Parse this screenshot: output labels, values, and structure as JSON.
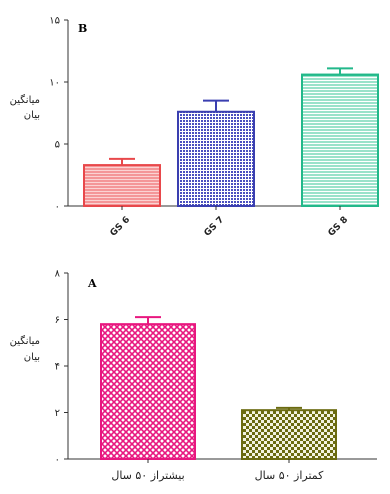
{
  "chart_data": [
    {
      "panel": "B",
      "type": "bar",
      "categories": [
        "GS 6",
        "GS 7",
        "GS 8"
      ],
      "values": [
        3.3,
        7.6,
        10.6
      ],
      "errors": [
        0.5,
        0.9,
        0.5
      ],
      "ylabel": [
        "میانگین",
        "بیان"
      ],
      "ylim": [
        0,
        15
      ],
      "yticks": [
        "۰",
        "۵",
        "۱۰",
        "۱۵"
      ],
      "ytick_values": [
        0,
        5,
        10,
        15
      ],
      "colors": [
        "#e8484b",
        "#3a3fb0",
        "#22b88a"
      ],
      "patterns": [
        "hlines-red",
        "dots-blue",
        "hlines-green"
      ],
      "grid": false,
      "legend": "none"
    },
    {
      "panel": "A",
      "type": "bar",
      "categories": [
        "بیشتراز ۵۰ سال",
        "کمتراز ۵۰ سال"
      ],
      "values": [
        5.8,
        2.1
      ],
      "errors": [
        0.3,
        0.1
      ],
      "ylabel": [
        "میانگین",
        "بیان"
      ],
      "ylim": [
        0,
        8
      ],
      "yticks": [
        "۰",
        "۲",
        "۴",
        "۶",
        "۸"
      ],
      "ytick_values": [
        0,
        2,
        4,
        6,
        8
      ],
      "colors": [
        "#e8177f",
        "#6b6b10"
      ],
      "patterns": [
        "cross-pink",
        "checker-olive"
      ],
      "grid": false,
      "legend": "none"
    }
  ]
}
